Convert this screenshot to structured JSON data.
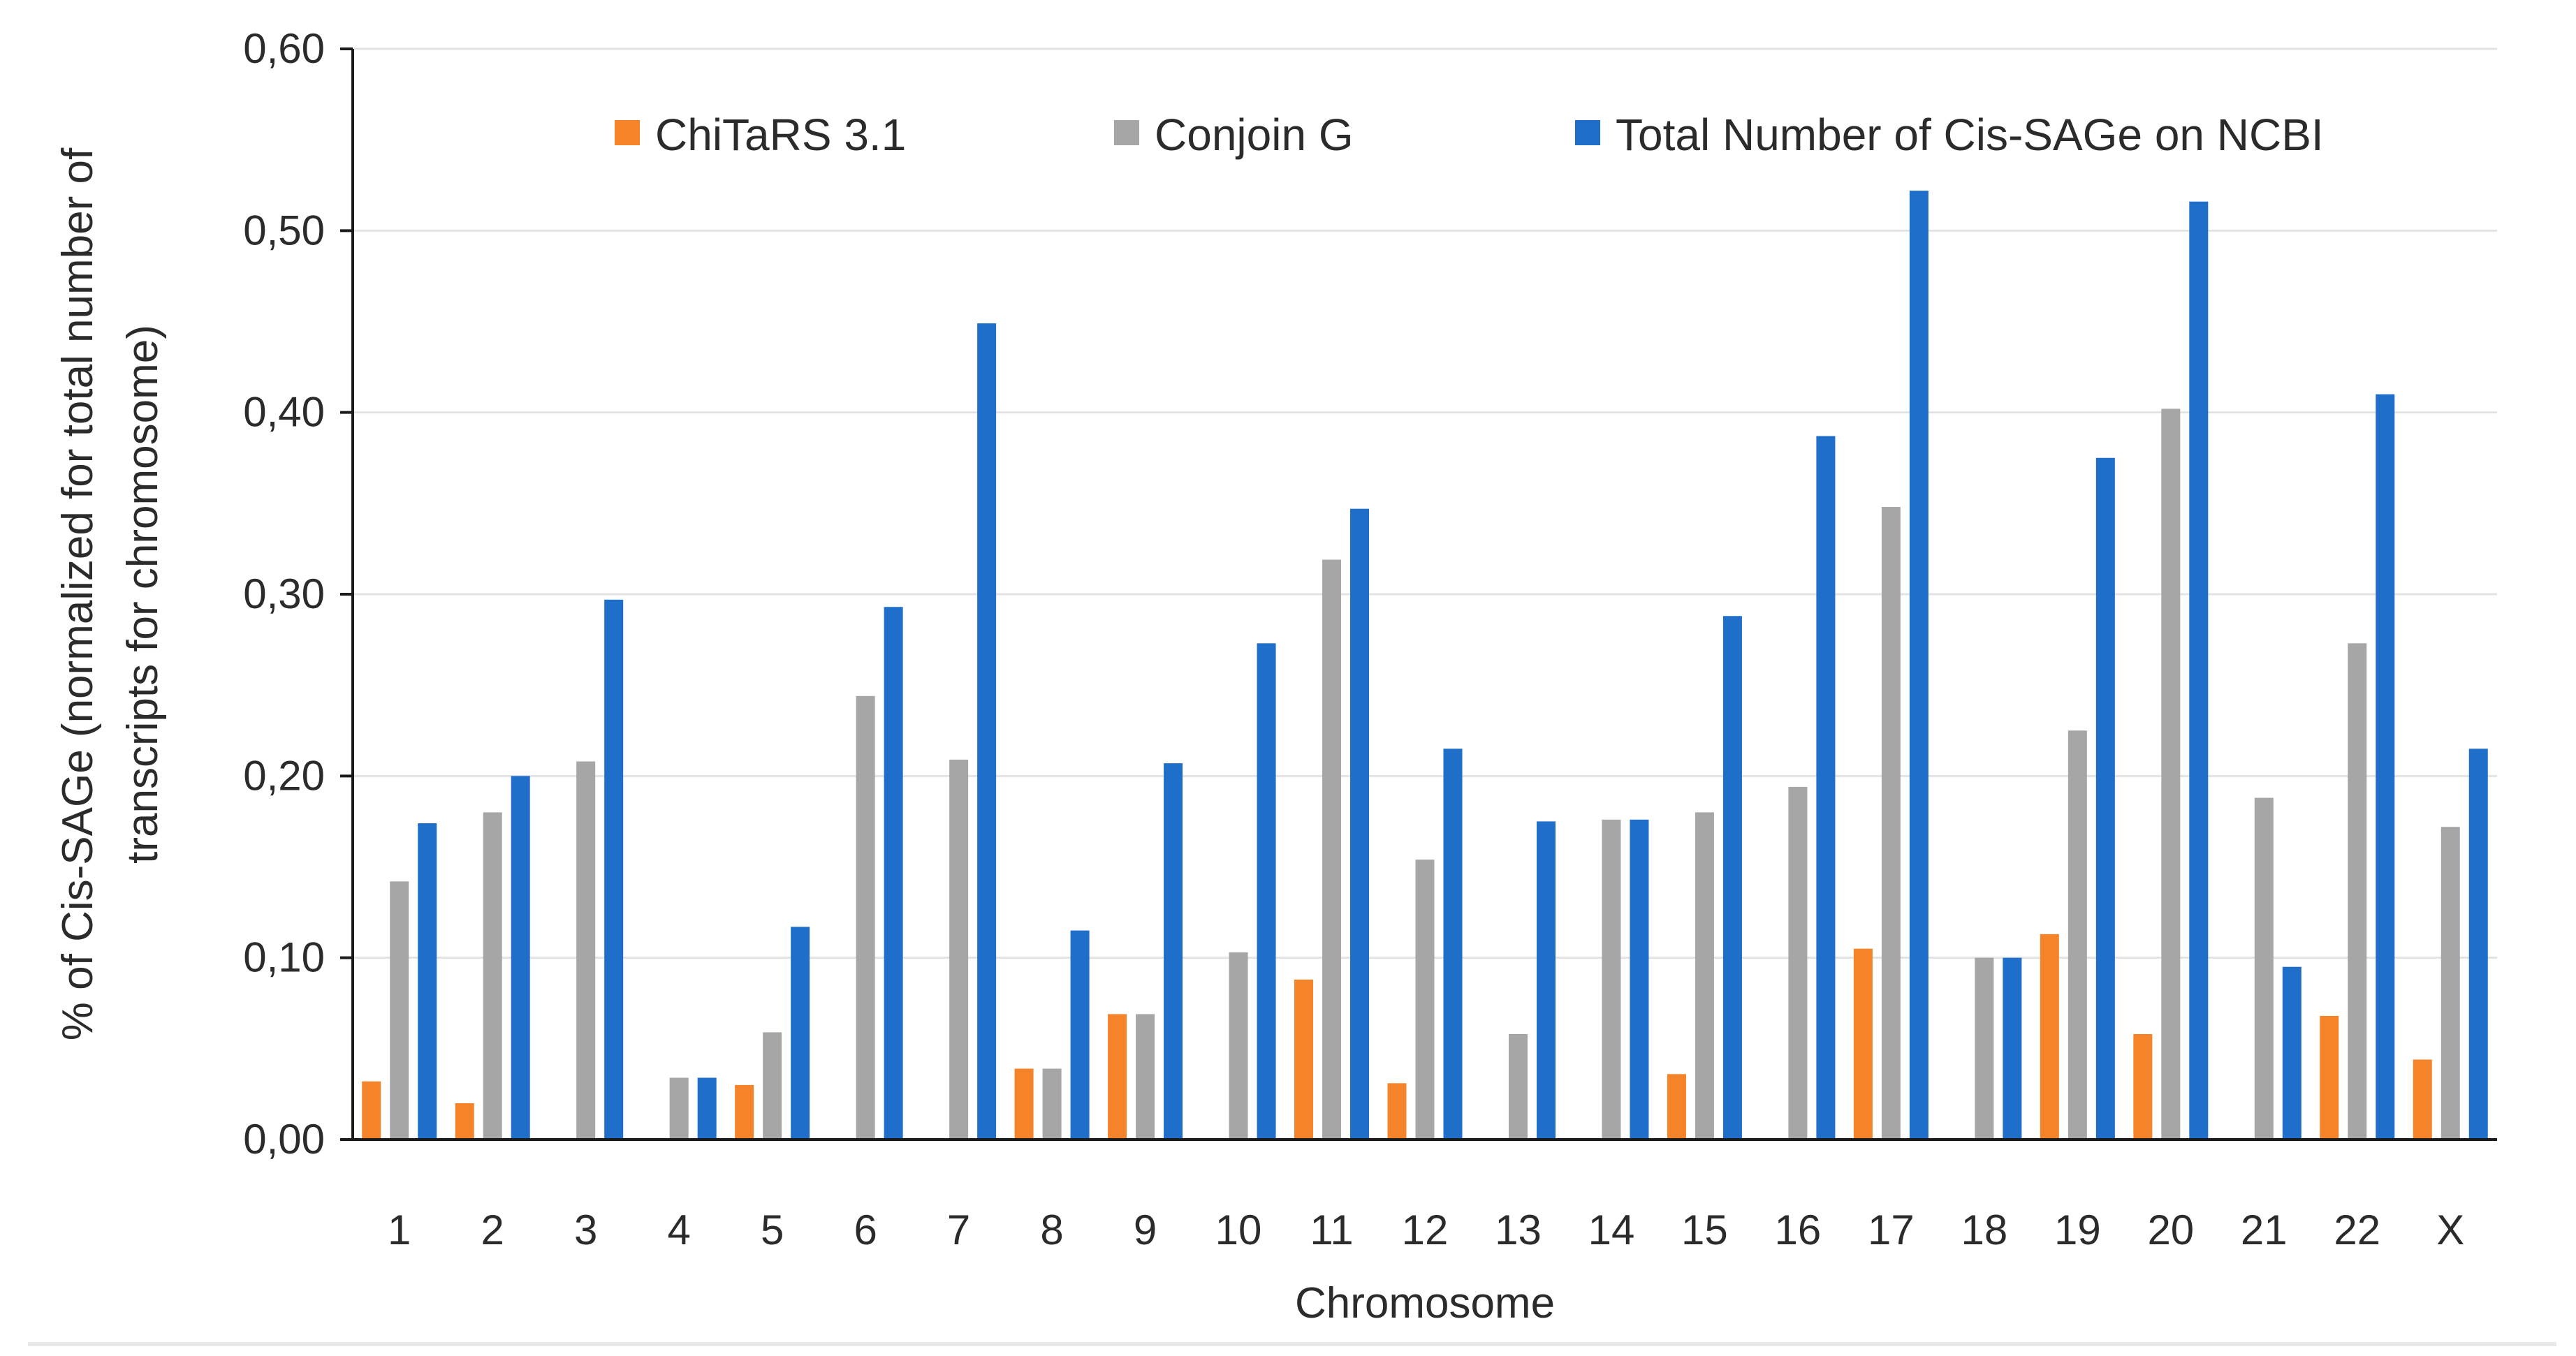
{
  "chart_data": {
    "type": "bar",
    "title": "",
    "xlabel": "Chromosome",
    "ylabel_lines": [
      "% of Cis-SAGe (normalized for total number of",
      "transcripts for chromosome)"
    ],
    "ylim": [
      0,
      0.6
    ],
    "yticks": [
      0,
      0.1,
      0.2,
      0.3,
      0.4,
      0.5,
      0.6
    ],
    "ytick_labels": [
      "0,00",
      "0,10",
      "0,20",
      "0,30",
      "0,40",
      "0,50",
      "0,60"
    ],
    "grid": true,
    "legend_position": "top",
    "categories": [
      "1",
      "2",
      "3",
      "4",
      "5",
      "6",
      "7",
      "8",
      "9",
      "10",
      "11",
      "12",
      "13",
      "14",
      "15",
      "16",
      "17",
      "18",
      "19",
      "20",
      "21",
      "22",
      "X"
    ],
    "series": [
      {
        "name": "ChiTaRS 3.1",
        "color": "#f4832a",
        "values": [
          0.032,
          0.02,
          0,
          0,
          0.03,
          0,
          0,
          0.039,
          0.069,
          0,
          0.088,
          0.031,
          0,
          0,
          0.036,
          0,
          0.105,
          0,
          0.113,
          0.058,
          0,
          0.068,
          0.044
        ]
      },
      {
        "name": "Conjoin G",
        "color": "#a6a6a6",
        "values": [
          0.142,
          0.18,
          0.208,
          0.034,
          0.059,
          0.244,
          0.209,
          0.039,
          0.069,
          0.103,
          0.319,
          0.154,
          0.058,
          0.176,
          0.18,
          0.194,
          0.348,
          0.1,
          0.225,
          0.402,
          0.188,
          0.273,
          0.172
        ]
      },
      {
        "name": "Total Number of Cis-SAGe on NCBI",
        "color": "#1f6ec9",
        "values": [
          0.174,
          0.2,
          0.297,
          0.034,
          0.117,
          0.293,
          0.449,
          0.115,
          0.207,
          0.273,
          0.347,
          0.215,
          0.175,
          0.176,
          0.288,
          0.387,
          0.522,
          0.1,
          0.375,
          0.516,
          0.095,
          0.41,
          0.215
        ]
      }
    ]
  }
}
